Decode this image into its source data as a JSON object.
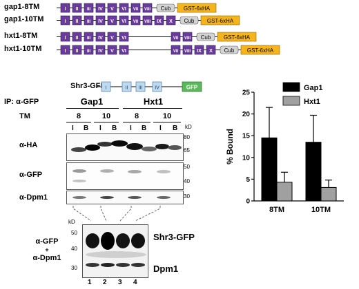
{
  "constructs": [
    {
      "name": "gap1-8TM",
      "tm": [
        "I",
        "II",
        "III",
        "IV",
        "V",
        "VI",
        "VII",
        "VIII"
      ],
      "cub": "Cub",
      "tag": "GST-6xHA"
    },
    {
      "name": "gap1-10TM",
      "tm": [
        "I",
        "II",
        "III",
        "IV",
        "V",
        "VI",
        "VII",
        "VIII",
        "IX",
        "X"
      ],
      "cub": "Cub",
      "tag": "GST-6xHA"
    },
    {
      "name": "hxt1-8TM",
      "tm": [
        "I",
        "II",
        "III",
        "IV",
        "V",
        "VI",
        "VII",
        "VIII"
      ],
      "cub": "Cub",
      "tag": "GST-6xHA"
    },
    {
      "name": "hxt1-10TM",
      "tm": [
        "I",
        "II",
        "III",
        "IV",
        "V",
        "VI",
        "VII",
        "VIII",
        "IX",
        "X"
      ],
      "cub": "Cub",
      "tag": "GST-6xHA"
    }
  ],
  "shr3": {
    "name": "Shr3-GFP",
    "tm": [
      "I",
      "II",
      "III",
      "IV"
    ],
    "tag": "GFP"
  },
  "ip_label": "IP: α-GFP",
  "groups": [
    {
      "label": "Gap1"
    },
    {
      "label": "Hxt1"
    }
  ],
  "tm_row_label": "TM",
  "tm_values": [
    "8",
    "10",
    "8",
    "10"
  ],
  "fraction_labels": [
    "I",
    "B",
    "I",
    "B",
    "I",
    "B",
    "I",
    "B"
  ],
  "kd_label": "kD",
  "blots": [
    {
      "antibody": "α-HA",
      "markers": [
        "80",
        "65"
      ]
    },
    {
      "antibody": "α-GFP",
      "markers": [
        "50",
        "40"
      ]
    },
    {
      "antibody": "α-Dpm1",
      "markers": [
        "30"
      ]
    }
  ],
  "lower_blot": {
    "kd_label": "kD",
    "markers": [
      "50",
      "40",
      "30"
    ],
    "antibody_lines": [
      "α-GFP",
      "+",
      "α-Dpm1"
    ],
    "band_labels": [
      "Shr3-GFP",
      "Dpm1"
    ],
    "lanes": [
      "1",
      "2",
      "3",
      "4"
    ]
  },
  "chart_data": {
    "type": "bar",
    "categories": [
      "8TM",
      "10TM"
    ],
    "series": [
      {
        "name": "Gap1",
        "values": [
          14.5,
          13.5
        ],
        "errors": [
          7.0,
          6.2
        ],
        "color": "#000000"
      },
      {
        "name": "Hxt1",
        "values": [
          4.3,
          3.1
        ],
        "errors": [
          2.3,
          1.7
        ],
        "color": "#a0a0a0"
      }
    ],
    "ylabel": "% Bound",
    "xlabel": "",
    "ylim": [
      0,
      25
    ],
    "yticks": [
      "0",
      "5",
      "10",
      "15",
      "20",
      "25"
    ],
    "legend": "top-right"
  },
  "colors": {
    "tm": "#6a3b9c",
    "cub": "#d4d4d4",
    "tag": "#f4b41a",
    "shr3_tm": "#bfd9ee",
    "gfp": "#5cb85c"
  }
}
